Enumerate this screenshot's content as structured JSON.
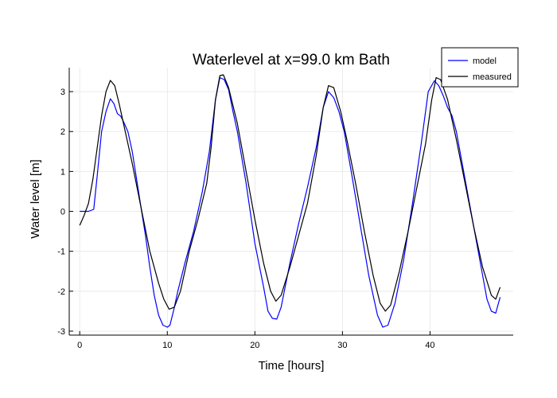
{
  "chart_data": {
    "type": "line",
    "title": "Waterlevel at x=99.0 km Bath",
    "xlabel": "Time [hours]",
    "ylabel": "Water level [m]",
    "xlim": [
      -1.2,
      49.5
    ],
    "ylim": [
      -3.1,
      3.6
    ],
    "xticks": [
      0,
      10,
      20,
      30,
      40
    ],
    "yticks": [
      -3,
      -2,
      -1,
      0,
      1,
      2,
      3
    ],
    "grid": true,
    "legend_position": "top-right",
    "series": [
      {
        "name": "model",
        "color": "#0000ff",
        "x": [
          0,
          1,
          1.6,
          2.0,
          2.5,
          3.0,
          3.5,
          3.9,
          4.3,
          4.7,
          5.1,
          5.5,
          6.0,
          6.5,
          7.0,
          7.5,
          8.0,
          8.5,
          9.0,
          9.5,
          10.0,
          10.3,
          10.7,
          11.2,
          12.0,
          13.0,
          14.0,
          14.8,
          15.5,
          16.0,
          16.5,
          17.0,
          17.5,
          18.0,
          19.0,
          20.0,
          21.0,
          21.5,
          22.0,
          22.5,
          23.0,
          24.0,
          25.0,
          26.0,
          27.0,
          27.8,
          28.4,
          29.0,
          29.6,
          30.2,
          31.0,
          32.0,
          33.0,
          34.0,
          34.6,
          35.2,
          36.0,
          37.0,
          38.0,
          39.0,
          39.8,
          40.5,
          41.0,
          41.5,
          42.0,
          42.5,
          43.0,
          44.0,
          45.0,
          46.0,
          46.5,
          47.0,
          47.5,
          48.0
        ],
        "y": [
          0.0,
          0.0,
          0.05,
          0.9,
          2.0,
          2.5,
          2.82,
          2.7,
          2.45,
          2.38,
          2.2,
          2.0,
          1.5,
          0.8,
          0.1,
          -0.6,
          -1.4,
          -2.1,
          -2.6,
          -2.85,
          -2.9,
          -2.85,
          -2.5,
          -2.0,
          -1.3,
          -0.5,
          0.5,
          1.5,
          2.8,
          3.35,
          3.3,
          3.05,
          2.5,
          2.0,
          0.7,
          -0.8,
          -1.9,
          -2.5,
          -2.68,
          -2.7,
          -2.4,
          -1.3,
          -0.3,
          0.6,
          1.6,
          2.6,
          3.0,
          2.85,
          2.5,
          2.0,
          1.0,
          -0.3,
          -1.6,
          -2.6,
          -2.9,
          -2.85,
          -2.3,
          -1.2,
          0.2,
          1.7,
          3.0,
          3.27,
          3.15,
          2.9,
          2.6,
          2.4,
          2.0,
          0.8,
          -0.4,
          -1.6,
          -2.2,
          -2.5,
          -2.55,
          -2.15
        ]
      },
      {
        "name": "measured",
        "color": "#000000",
        "x": [
          0,
          0.5,
          1.0,
          1.5,
          2.0,
          2.5,
          3.0,
          3.5,
          4.0,
          4.5,
          5.0,
          6.0,
          7.0,
          8.0,
          9.0,
          9.6,
          10.2,
          10.8,
          11.5,
          12.5,
          13.5,
          14.5,
          15.0,
          15.5,
          16.0,
          16.4,
          17.0,
          18.0,
          19.0,
          20.0,
          21.0,
          21.8,
          22.4,
          23.0,
          24.0,
          25.0,
          26.0,
          27.0,
          27.8,
          28.4,
          29.0,
          29.8,
          30.5,
          31.5,
          32.5,
          33.5,
          34.3,
          34.9,
          35.5,
          36.5,
          37.5,
          38.5,
          39.5,
          40.2,
          40.7,
          41.2,
          42.0,
          43.0,
          44.0,
          45.0,
          46.0,
          47.0,
          47.5,
          48.0
        ],
        "y": [
          -0.35,
          -0.1,
          0.2,
          0.8,
          1.6,
          2.4,
          3.0,
          3.28,
          3.15,
          2.7,
          2.2,
          1.2,
          0.1,
          -1.0,
          -1.8,
          -2.2,
          -2.45,
          -2.4,
          -2.0,
          -1.0,
          -0.2,
          0.7,
          1.6,
          2.8,
          3.4,
          3.42,
          3.1,
          2.2,
          1.0,
          -0.2,
          -1.3,
          -2.0,
          -2.25,
          -2.1,
          -1.4,
          -0.6,
          0.2,
          1.4,
          2.6,
          3.15,
          3.1,
          2.5,
          1.8,
          0.7,
          -0.5,
          -1.6,
          -2.3,
          -2.5,
          -2.35,
          -1.5,
          -0.5,
          0.6,
          1.7,
          2.8,
          3.35,
          3.3,
          2.8,
          1.8,
          0.7,
          -0.4,
          -1.4,
          -2.1,
          -2.2,
          -1.9
        ]
      }
    ]
  }
}
